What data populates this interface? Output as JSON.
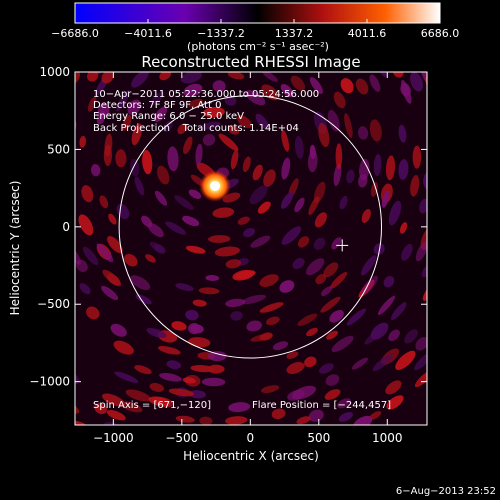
{
  "chart_data": {
    "type": "heatmap",
    "title": "Reconstructed RHESSI Image",
    "xlabel": "Heliocentric X (arcsec)",
    "ylabel": "Heliocentric Y (arcsec)",
    "xlim": [
      -1280,
      1290
    ],
    "ylim": [
      -1280,
      1000
    ],
    "xticks": [
      -1000,
      -500,
      0,
      500,
      1000
    ],
    "yticks": [
      1000,
      500,
      0,
      -500,
      -1000
    ],
    "colorbar": {
      "range": [
        -6686.0,
        6686.0
      ],
      "tick_values": [
        -6686.0,
        -4011.6,
        -1337.2,
        1337.2,
        4011.6,
        6686.0
      ],
      "tick_labels": [
        "−6686.0",
        "−4011.6",
        "−1337.2",
        "1337.2",
        "4011.6",
        "6686.0"
      ],
      "unit_label": "(photons cm⁻² s⁻¹ asec⁻²)",
      "colors": [
        "#0000ff",
        "#6a00b0",
        "#000000",
        "#b01010",
        "#ff6000",
        "#ffffff"
      ]
    },
    "annotations": [
      "10−Apr−2011 05:22:36.000 to 05:24:56.000",
      "Detectors: 7F 8F 9F, Att 0",
      "Energy Range: 6.0 − 25.0 keV",
      "Back Projection    Total counts: 1.14E+04"
    ],
    "spin_axis_label": "Spin Axis = [671,−120]",
    "flare_position_label": "Flare Position = [−244,457]",
    "spin_axis": [
      671,
      -120
    ],
    "flare_position": [
      -244,
      457
    ],
    "solar_limb_radius": 958
  },
  "footer": {
    "timestamp": "6−Aug−2013 23:52"
  }
}
